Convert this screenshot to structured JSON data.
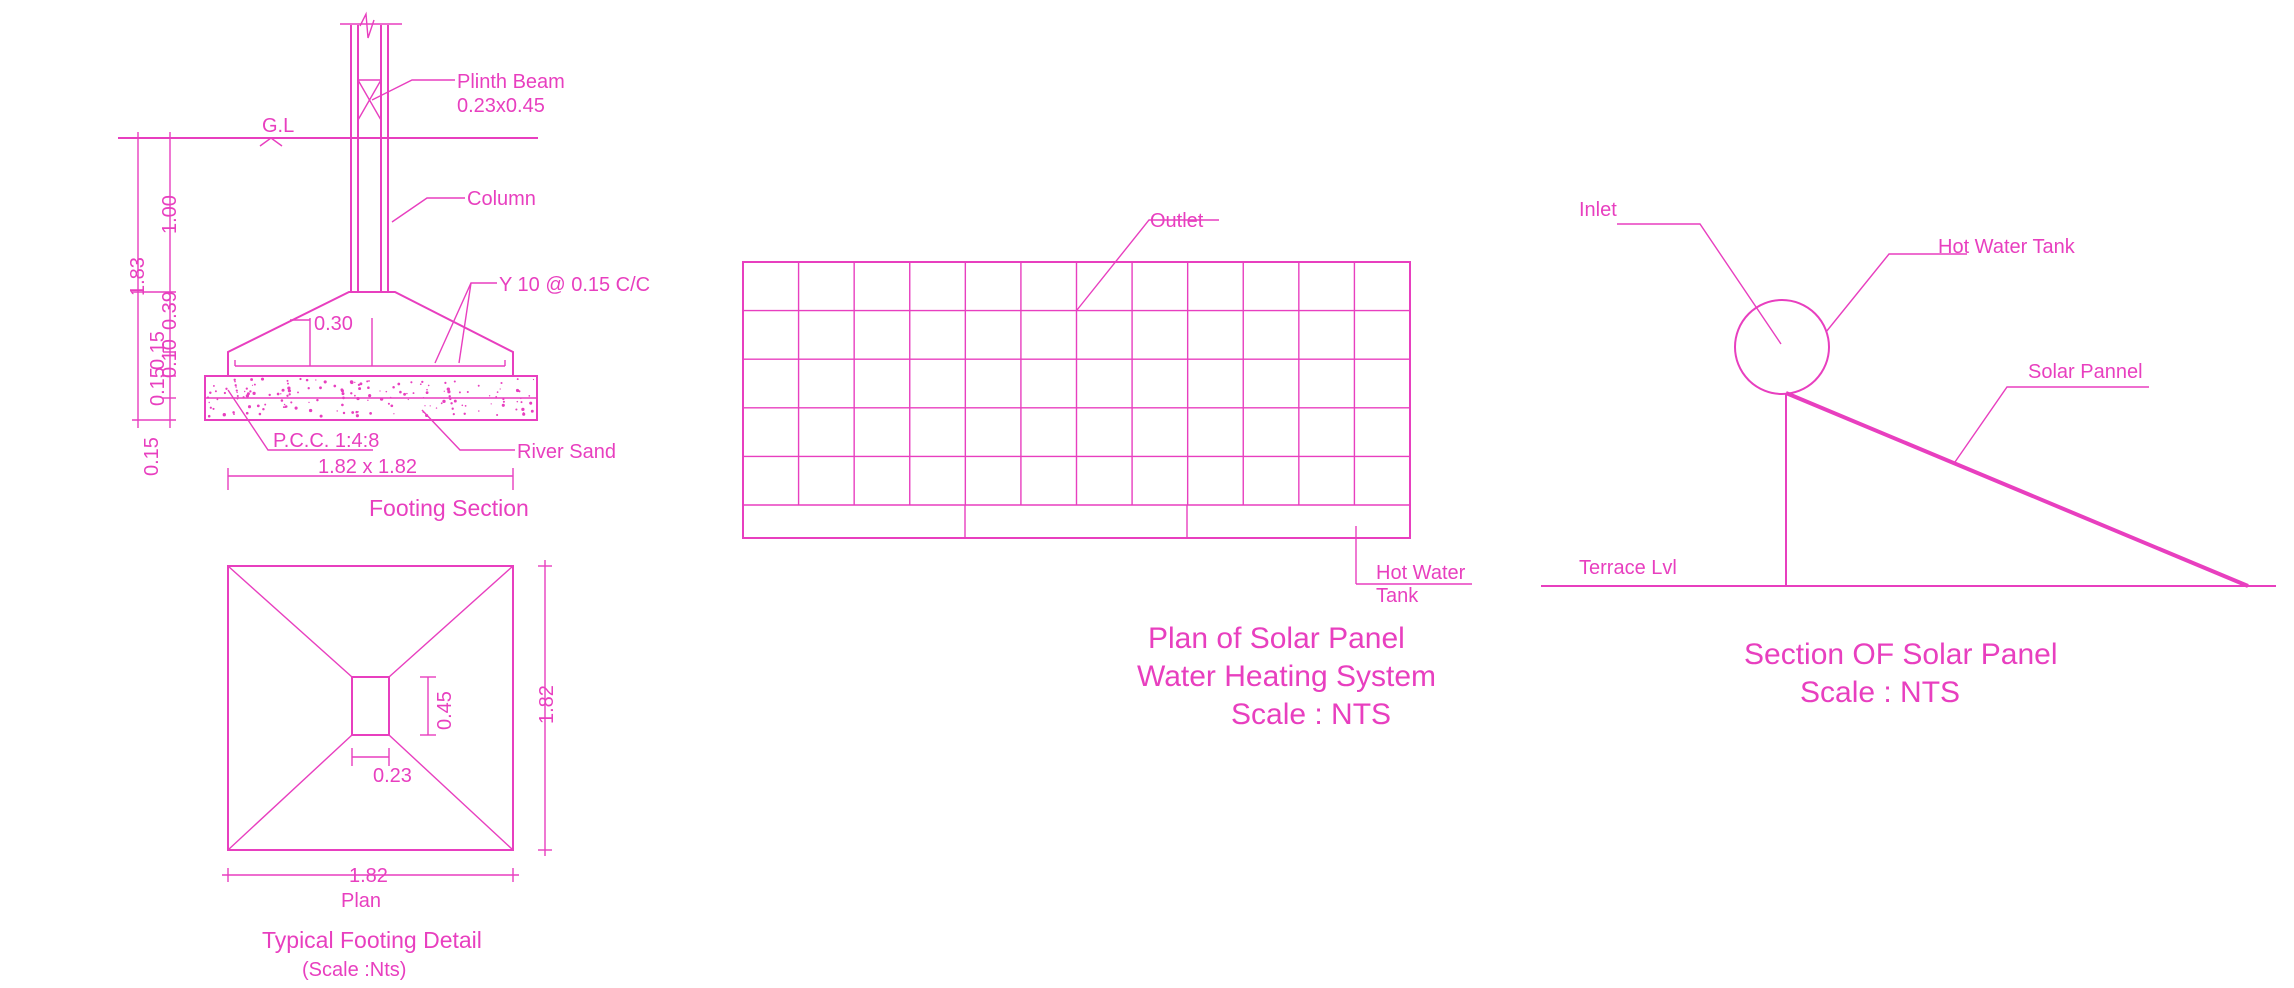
{
  "colors": {
    "line": "#e83fbf",
    "background": "#ffffff"
  },
  "footing_section": {
    "labels": {
      "plinth_beam": "Plinth Beam",
      "plinth_beam_size": "0.23x0.45",
      "ground_level": "G.L",
      "column": "Column",
      "reinforcement": "Y 10 @ 0.15 C/C",
      "pcc": "P.C.C. 1:4:8",
      "footing_size": "1.82 x 1.82",
      "river_sand": "River Sand",
      "title": "Footing Section"
    },
    "dimensions": {
      "total_depth": "1.83",
      "gl_depth": "1.00",
      "taper_height": "0.39",
      "slab_a": "0.15",
      "slab_b": "0.15",
      "slab_c": "0.10",
      "offset": "0.30",
      "pcc_thickness": "0.15"
    }
  },
  "footing_plan": {
    "dimensions": {
      "column_depth": "0.45",
      "column_width": "0.23",
      "side_vertical": "1.82",
      "side_horizontal": "1.82"
    },
    "labels": {
      "view": "Plan",
      "title": "Typical Footing Detail",
      "scale": "(Scale :Nts)"
    }
  },
  "solar_plan": {
    "labels": {
      "outlet": "Outlet",
      "tank_line1": "Hot Water",
      "tank_line2": "Tank"
    },
    "title": {
      "line1": "Plan  of Solar Panel",
      "line2": "Water Heating System",
      "line3": "Scale : NTS"
    }
  },
  "solar_section": {
    "labels": {
      "inlet": "Inlet",
      "tank": "Hot Water Tank",
      "panel": "Solar Pannel",
      "terrace": "Terrace Lvl"
    },
    "title": {
      "line1": "Section OF Solar Panel",
      "line2": "Scale : NTS"
    }
  }
}
